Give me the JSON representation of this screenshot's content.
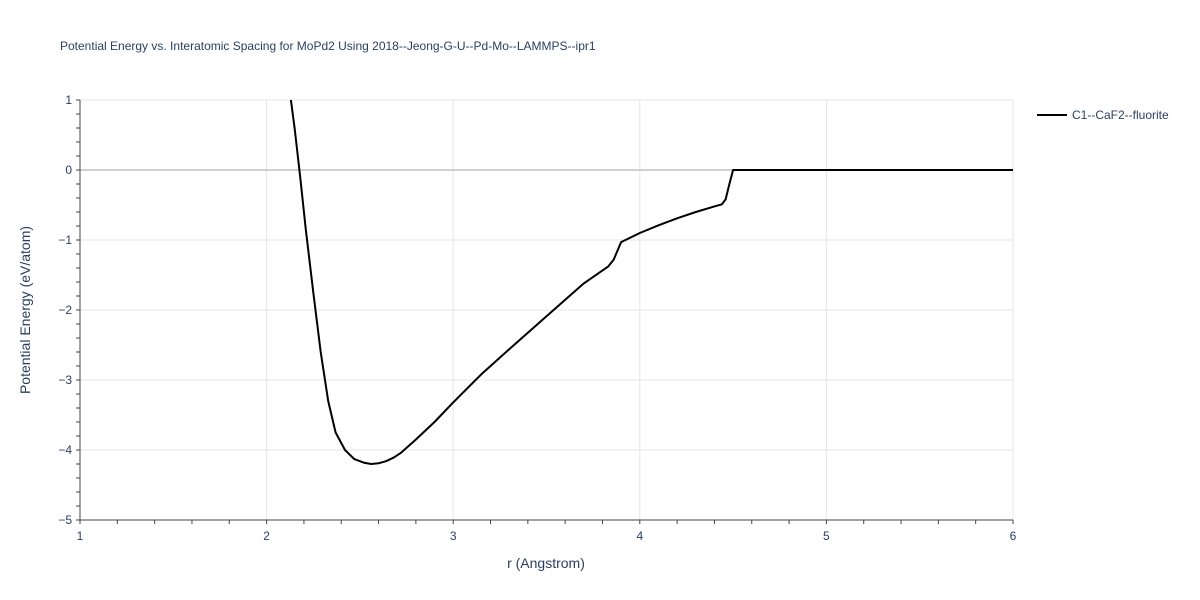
{
  "chart_data": {
    "type": "line",
    "title": "Potential Energy vs. Interatomic Spacing for MoPd2 Using 2018--Jeong-G-U--Pd-Mo--LAMMPS--ipr1",
    "xlabel": "r (Angstrom)",
    "ylabel": "Potential Energy (eV/atom)",
    "xlim": [
      1,
      6
    ],
    "ylim": [
      -5,
      1
    ],
    "xticks": [
      "1",
      "2",
      "3",
      "4",
      "5",
      "6"
    ],
    "yticks": [
      "1",
      "0",
      "−1",
      "−2",
      "−3",
      "−4",
      "−5"
    ],
    "grid": true,
    "legend_position": "top-right",
    "series": [
      {
        "name": "C1--CaF2--fluorite",
        "color": "#000000",
        "x": [
          2.13,
          2.15,
          2.18,
          2.21,
          2.25,
          2.29,
          2.33,
          2.37,
          2.42,
          2.47,
          2.52,
          2.56,
          2.6,
          2.64,
          2.68,
          2.72,
          2.8,
          2.9,
          3.0,
          3.15,
          3.3,
          3.5,
          3.7,
          3.83,
          3.86,
          3.9,
          4.0,
          4.1,
          4.2,
          4.3,
          4.4,
          4.44,
          4.46,
          4.48,
          4.5,
          4.55,
          5.0,
          5.5,
          6.0
        ],
        "y": [
          1.0,
          0.6,
          -0.1,
          -0.85,
          -1.75,
          -2.6,
          -3.3,
          -3.75,
          -4.0,
          -4.13,
          -4.18,
          -4.2,
          -4.19,
          -4.16,
          -4.11,
          -4.04,
          -3.85,
          -3.6,
          -3.32,
          -2.92,
          -2.56,
          -2.09,
          -1.62,
          -1.38,
          -1.28,
          -1.03,
          -0.9,
          -0.79,
          -0.69,
          -0.6,
          -0.52,
          -0.49,
          -0.42,
          -0.2,
          0.0,
          0.0,
          0.0,
          0.0,
          0.0
        ]
      }
    ]
  }
}
